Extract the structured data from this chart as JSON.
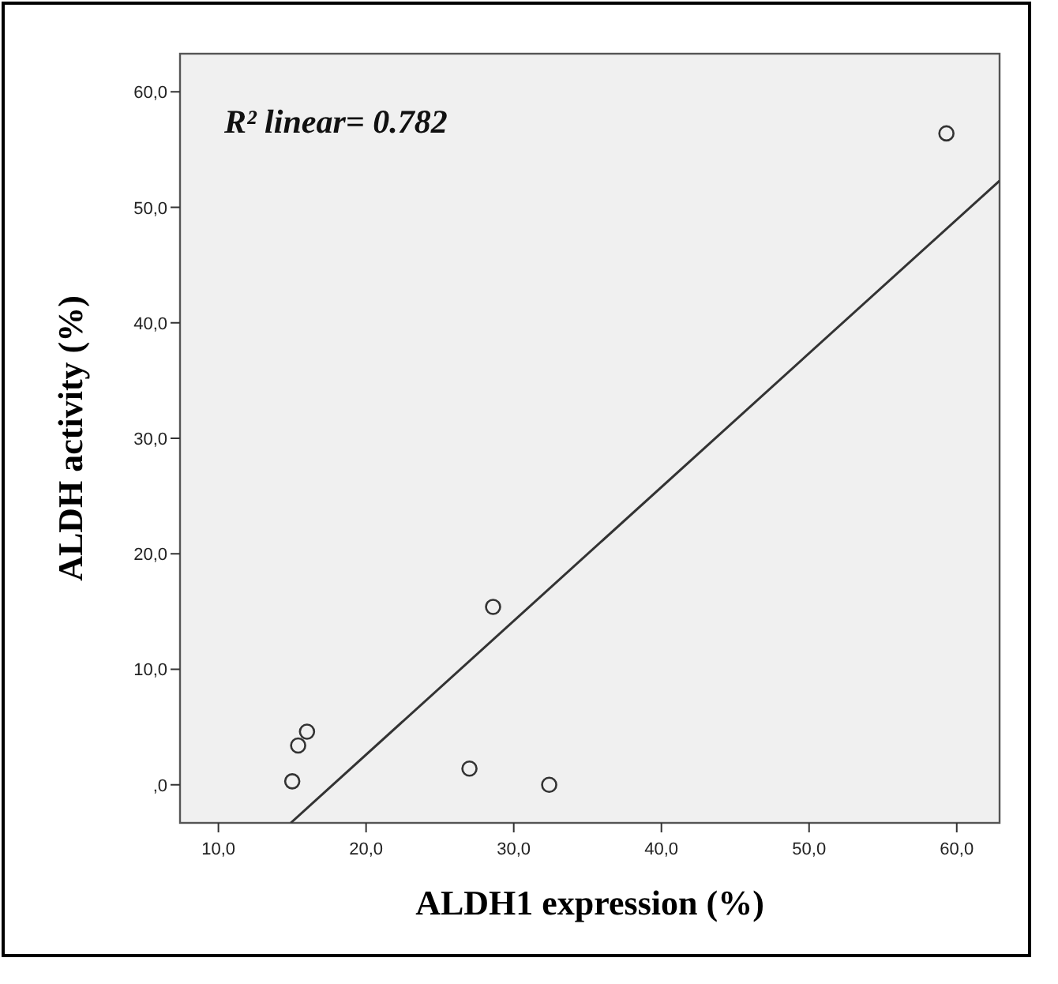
{
  "chart_data": {
    "type": "scatter",
    "xlabel": "ALDH1 expression (%)",
    "ylabel": "ALDH activity (%)",
    "annotations": [
      "R² linear= 0.782"
    ],
    "xlim": [
      7.4,
      62.9
    ],
    "ylim": [
      -3.3,
      63.3
    ],
    "xticks": [
      {
        "value": 10,
        "label": "10,0"
      },
      {
        "value": 20,
        "label": "20,0"
      },
      {
        "value": 30,
        "label": "30,0"
      },
      {
        "value": 40,
        "label": "40,0"
      },
      {
        "value": 50,
        "label": "50,0"
      },
      {
        "value": 60,
        "label": "60,0"
      }
    ],
    "yticks": [
      {
        "value": 0,
        "label": ",0"
      },
      {
        "value": 10,
        "label": "10,0"
      },
      {
        "value": 20,
        "label": "20,0"
      },
      {
        "value": 30,
        "label": "30,0"
      },
      {
        "value": 40,
        "label": "40,0"
      },
      {
        "value": 50,
        "label": "50,0"
      },
      {
        "value": 60,
        "label": "60,0"
      }
    ],
    "grid": false,
    "series": [
      {
        "marker": "circle",
        "color": "#333333",
        "x": [
          15.0,
          15.4,
          16.0,
          27.0,
          32.4,
          28.6,
          59.3
        ],
        "values": [
          0.3,
          3.4,
          4.6,
          1.4,
          0.0,
          15.4,
          56.4
        ]
      },
      {
        "type": "line",
        "marker": "none",
        "color": "#333333",
        "x": [
          14.9,
          62.9
        ],
        "values": [
          -3.3,
          52.3
        ]
      }
    ]
  }
}
